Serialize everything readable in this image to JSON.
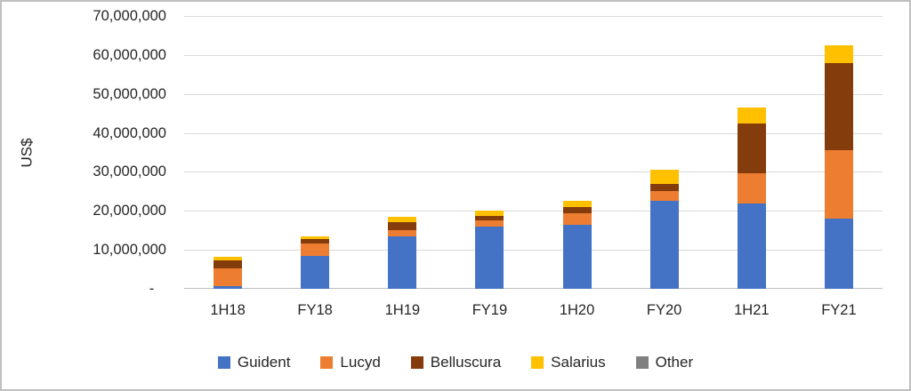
{
  "chart_data": {
    "type": "bar",
    "stacked": true,
    "title": "",
    "xlabel": "",
    "ylabel": "US$",
    "ylim": [
      0,
      70000000
    ],
    "grid": true,
    "legend_position": "bottom",
    "categories": [
      "1H18",
      "FY18",
      "1H19",
      "FY19",
      "1H20",
      "FY20",
      "1H21",
      "FY21"
    ],
    "yticks": [
      {
        "value": 0,
        "label": " -   "
      },
      {
        "value": 10000000,
        "label": "10,000,000"
      },
      {
        "value": 20000000,
        "label": "20,000,000"
      },
      {
        "value": 30000000,
        "label": "30,000,000"
      },
      {
        "value": 40000000,
        "label": "40,000,000"
      },
      {
        "value": 50000000,
        "label": "50,000,000"
      },
      {
        "value": 60000000,
        "label": "60,000,000"
      },
      {
        "value": 70000000,
        "label": "70,000,000"
      }
    ],
    "series": [
      {
        "name": "Guident",
        "color": "#4472c4",
        "values": [
          800000,
          8500000,
          13500000,
          16000000,
          16500000,
          22500000,
          22000000,
          18000000
        ]
      },
      {
        "name": "Lucyd",
        "color": "#ed7d31",
        "values": [
          4500000,
          3200000,
          1500000,
          1500000,
          3000000,
          2700000,
          7700000,
          17500000
        ]
      },
      {
        "name": "Belluscura",
        "color": "#843c0c",
        "values": [
          2000000,
          1000000,
          2000000,
          1300000,
          1500000,
          1800000,
          12800000,
          22500000
        ]
      },
      {
        "name": "Salarius",
        "color": "#ffc000",
        "values": [
          1000000,
          800000,
          1500000,
          1200000,
          1500000,
          3500000,
          4000000,
          4500000
        ]
      },
      {
        "name": "Other",
        "color": "#808080",
        "values": [
          0,
          0,
          0,
          0,
          0,
          0,
          0,
          0
        ]
      }
    ],
    "totals": [
      8300000,
      13500000,
      18500000,
      20000000,
      22500000,
      30500000,
      46500000,
      62500000
    ]
  }
}
